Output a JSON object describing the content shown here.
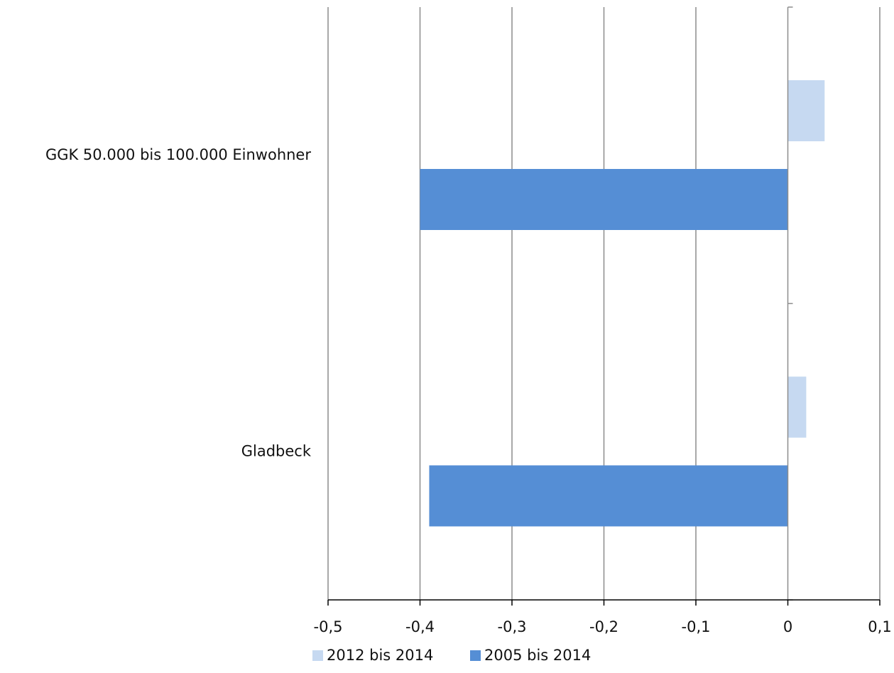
{
  "chart_data": {
    "type": "bar",
    "orientation": "horizontal",
    "categories": [
      "GGK 50.000 bis 100.000 Einwohner",
      "Gladbeck"
    ],
    "series": [
      {
        "name": "2012 bis 2014",
        "values": [
          0.04,
          0.02
        ],
        "color": "#c6d9f1"
      },
      {
        "name": "2005 bis 2014",
        "values": [
          -0.4,
          -0.39
        ],
        "color": "#558ed5"
      }
    ],
    "xlim": [
      -0.5,
      0.1
    ],
    "xticks": [
      -0.5,
      -0.4,
      -0.3,
      -0.2,
      -0.1,
      0,
      0.1
    ],
    "xtick_labels": [
      "-0,5",
      "-0,4",
      "-0,3",
      "-0,2",
      "-0,1",
      "0",
      "0,1"
    ],
    "grid": true,
    "legend_position": "bottom",
    "title": "",
    "xlabel": "",
    "ylabel": ""
  }
}
